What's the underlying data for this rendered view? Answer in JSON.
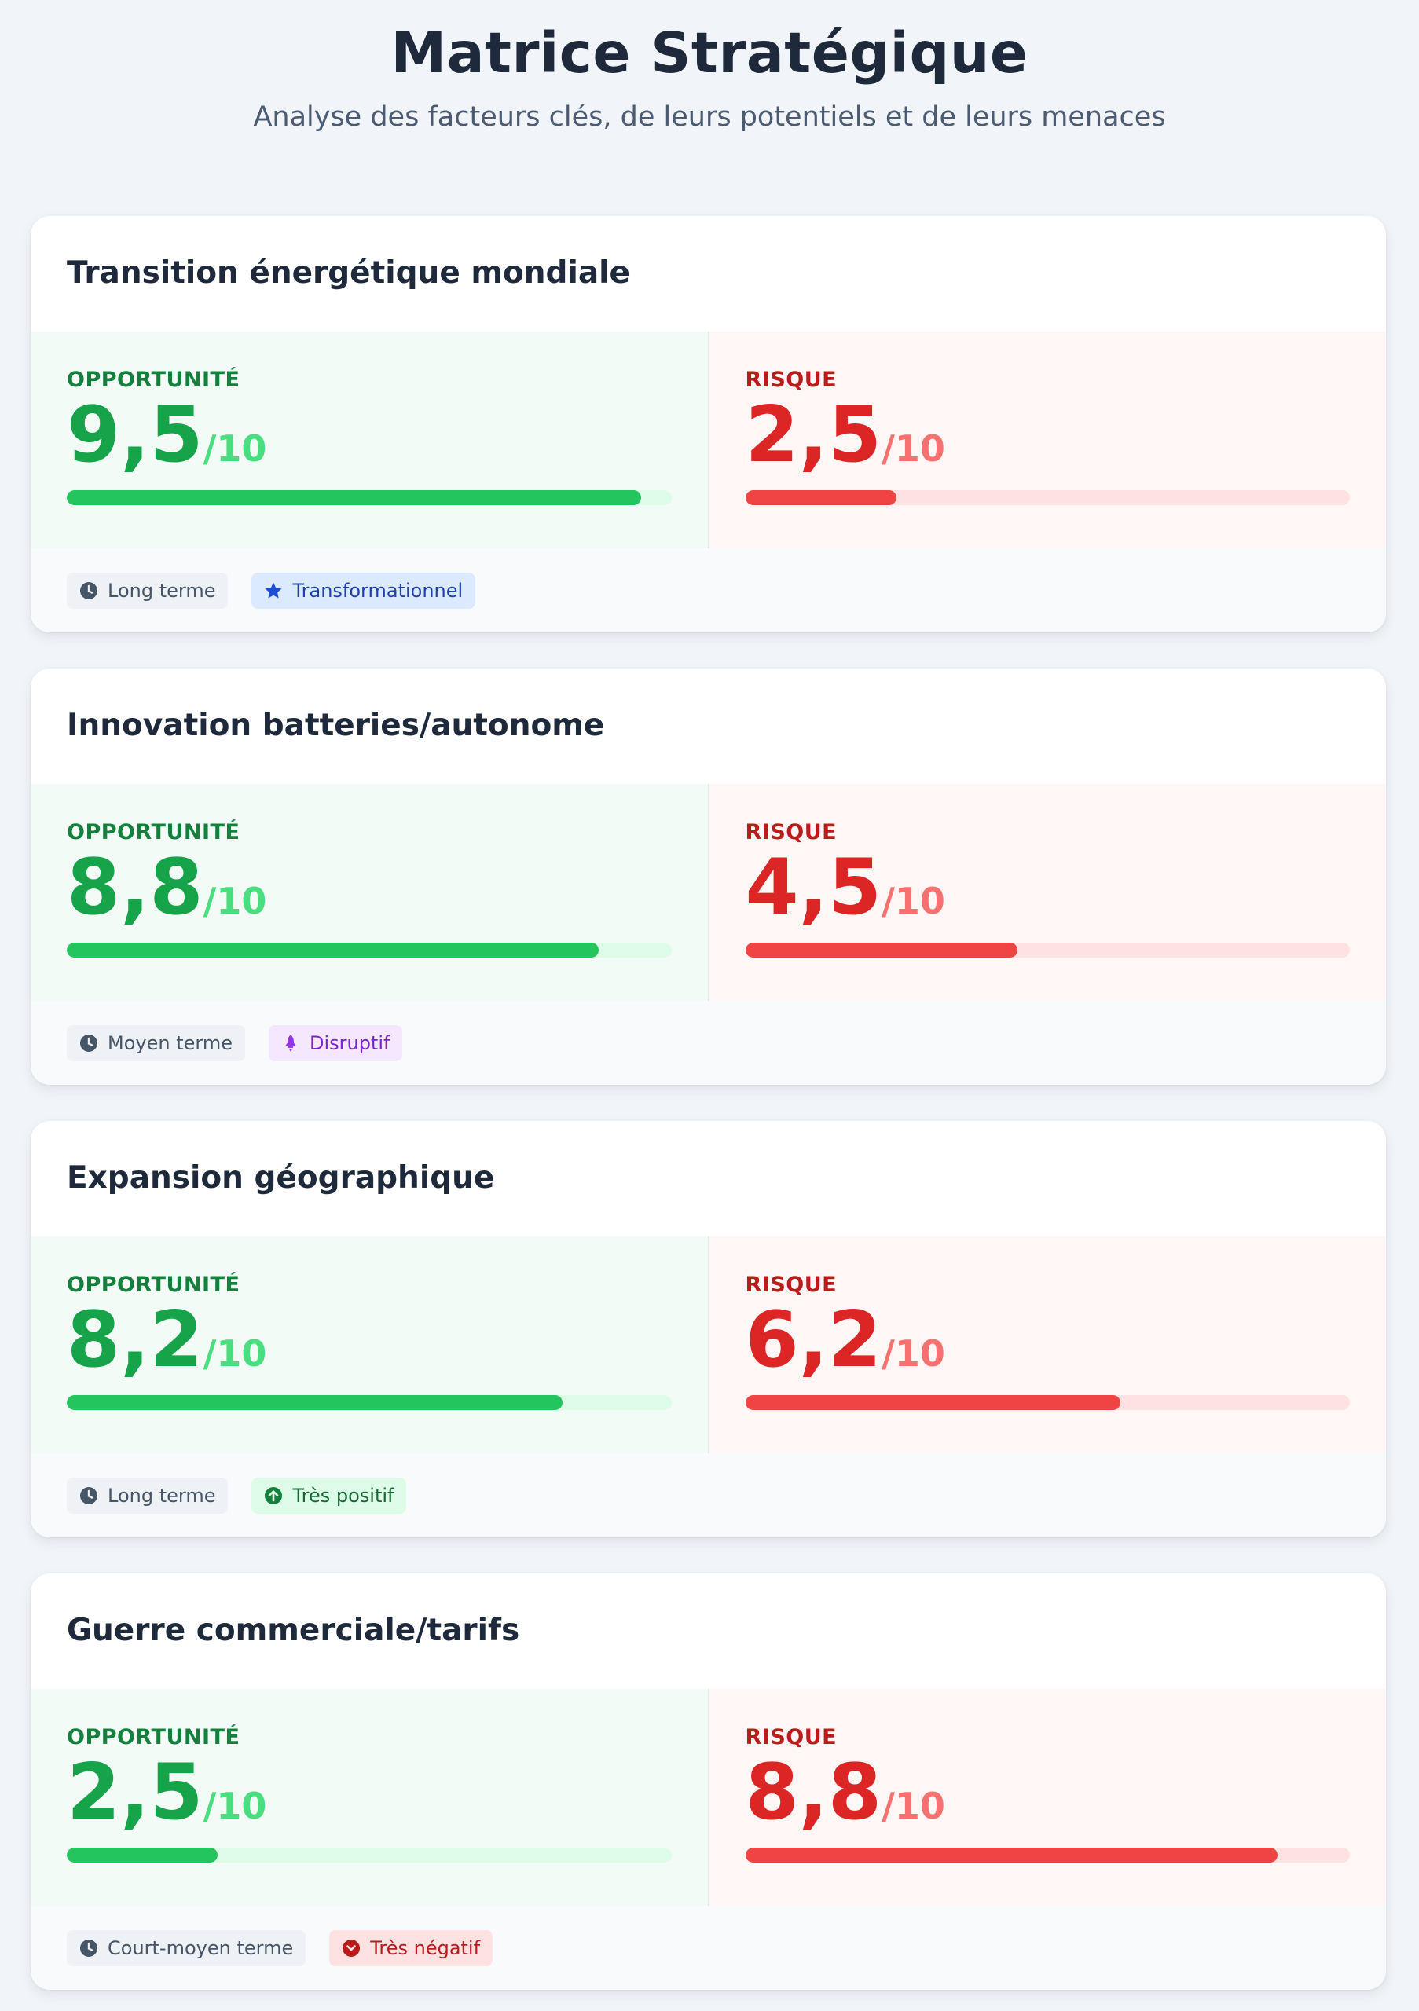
{
  "header": {
    "title": "Matrice Stratégique",
    "subtitle": "Analyse des facteurs clés, de leurs potentiels et de leurs menaces"
  },
  "labels": {
    "opportunity": "OPPORTUNITÉ",
    "risk": "RISQUE",
    "scale_suffix": "/10"
  },
  "colors": {
    "opportunity": "#16a34a",
    "risk": "#dc2626"
  },
  "cards": [
    {
      "title": "Transition énergétique mondiale",
      "opportunity_score": "9,5",
      "opportunity_value": 9.5,
      "risk_score": "2,5",
      "risk_value": 2.5,
      "horizon_tag": {
        "label": "Long terme",
        "icon": "clock-icon"
      },
      "impact_tag": {
        "label": "Transformationnel",
        "icon": "star-icon",
        "tone": "blue"
      }
    },
    {
      "title": "Innovation batteries/autonome",
      "opportunity_score": "8,8",
      "opportunity_value": 8.8,
      "risk_score": "4,5",
      "risk_value": 4.5,
      "horizon_tag": {
        "label": "Moyen terme",
        "icon": "clock-icon"
      },
      "impact_tag": {
        "label": "Disruptif",
        "icon": "rocket-icon",
        "tone": "purple"
      }
    },
    {
      "title": "Expansion géographique",
      "opportunity_score": "8,2",
      "opportunity_value": 8.2,
      "risk_score": "6,2",
      "risk_value": 6.2,
      "horizon_tag": {
        "label": "Long terme",
        "icon": "clock-icon"
      },
      "impact_tag": {
        "label": "Très positif",
        "icon": "arrow-up-circle-icon",
        "tone": "green"
      }
    },
    {
      "title": "Guerre commerciale/tarifs",
      "opportunity_score": "2,5",
      "opportunity_value": 2.5,
      "risk_score": "8,8",
      "risk_value": 8.8,
      "horizon_tag": {
        "label": "Court-moyen terme",
        "icon": "clock-icon"
      },
      "impact_tag": {
        "label": "Très négatif",
        "icon": "arrow-down-circle-icon",
        "tone": "red"
      }
    }
  ]
}
